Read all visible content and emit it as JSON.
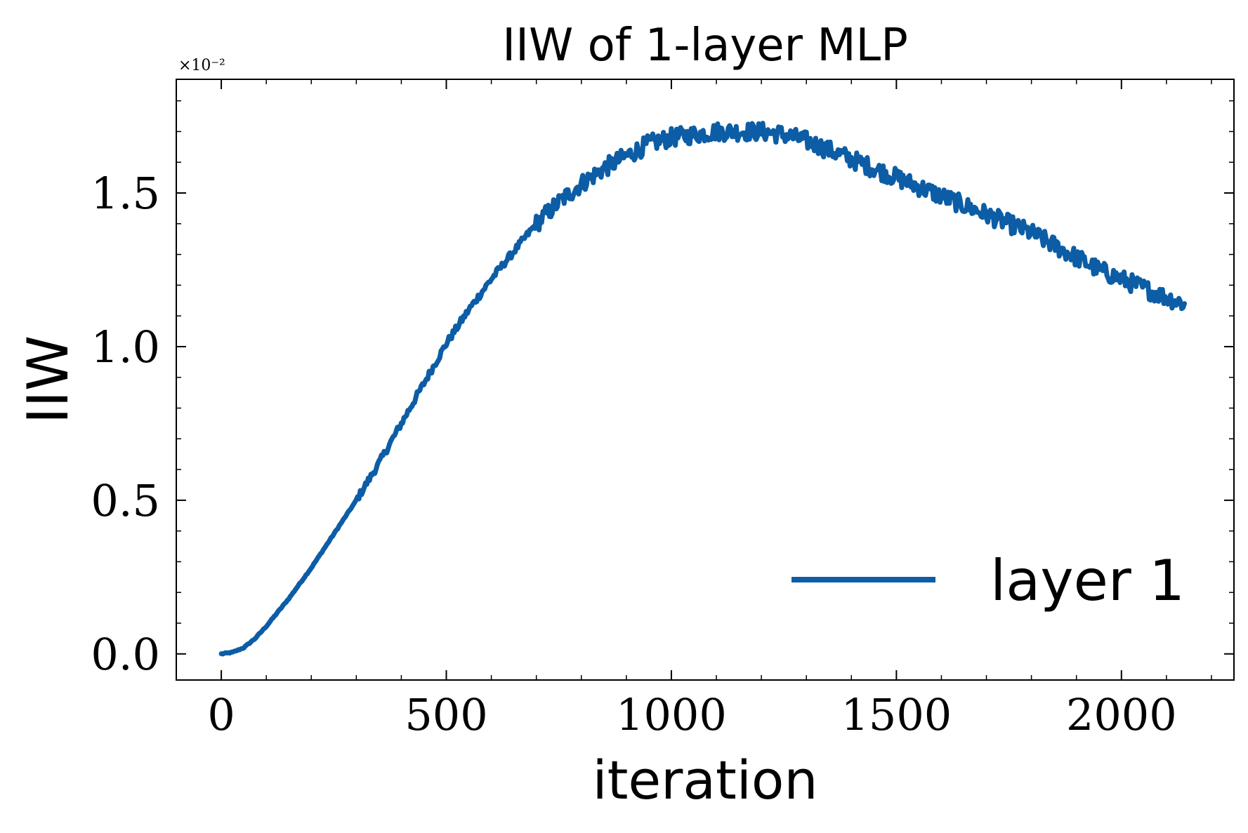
{
  "chart_data": {
    "type": "line",
    "title": "IIW of 1-layer MLP",
    "xlabel": "iteration",
    "ylabel": "IIW",
    "y_multiplier_label": "×10⁻²",
    "xlim": [
      -100,
      2250
    ],
    "ylim": [
      -0.085,
      1.87
    ],
    "x_ticks": [
      0,
      500,
      1000,
      1500,
      2000
    ],
    "x_tick_labels": [
      "0",
      "500",
      "1000",
      "1500",
      "2000"
    ],
    "y_ticks": [
      0.0,
      0.5,
      1.0,
      1.5
    ],
    "y_tick_labels": [
      "0.0",
      "0.5",
      "1.0",
      "1.5"
    ],
    "grid": false,
    "legend_position": "lower-right",
    "series": [
      {
        "name": "layer 1",
        "color": "#0C5DA5",
        "x": [
          0,
          25,
          50,
          75,
          100,
          150,
          200,
          250,
          300,
          350,
          400,
          450,
          500,
          550,
          600,
          650,
          700,
          750,
          800,
          850,
          900,
          950,
          1000,
          1050,
          1100,
          1150,
          1200,
          1250,
          1300,
          1350,
          1400,
          1450,
          1500,
          1550,
          1600,
          1650,
          1700,
          1750,
          1800,
          1850,
          1900,
          1950,
          2000,
          2050,
          2100,
          2140
        ],
        "y": [
          0.0,
          0.005,
          0.02,
          0.05,
          0.09,
          0.18,
          0.28,
          0.39,
          0.5,
          0.62,
          0.75,
          0.88,
          1.01,
          1.12,
          1.22,
          1.31,
          1.4,
          1.47,
          1.53,
          1.58,
          1.62,
          1.66,
          1.68,
          1.69,
          1.7,
          1.7,
          1.7,
          1.69,
          1.67,
          1.64,
          1.61,
          1.58,
          1.55,
          1.52,
          1.49,
          1.46,
          1.43,
          1.4,
          1.37,
          1.33,
          1.29,
          1.25,
          1.22,
          1.19,
          1.16,
          1.14
        ]
      }
    ]
  }
}
